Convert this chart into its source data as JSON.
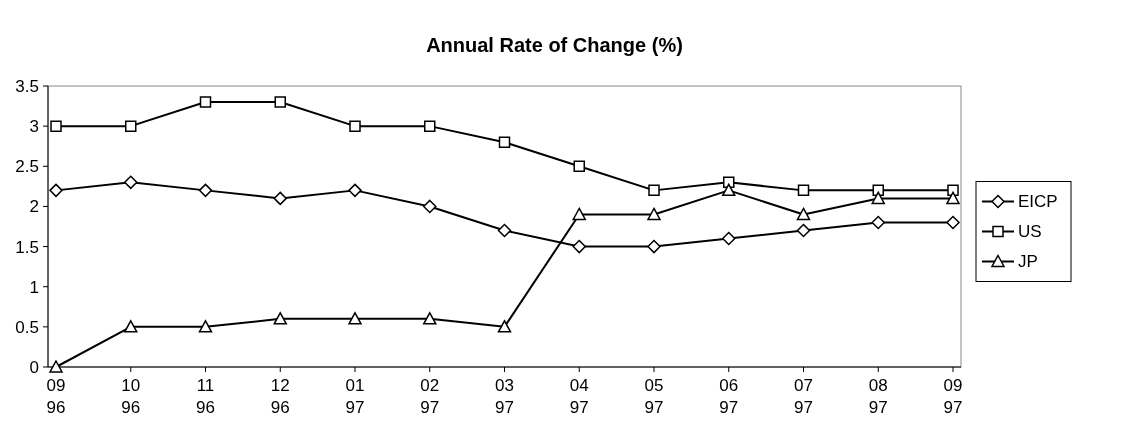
{
  "chart_data": {
    "type": "line",
    "title": "Annual Rate of Change (%)",
    "categories": [
      "09\n96",
      "10\n96",
      "11\n96",
      "12\n96",
      "01\n97",
      "02\n97",
      "03\n97",
      "04\n97",
      "05\n97",
      "06\n97",
      "07\n97",
      "08\n97",
      "09\n97"
    ],
    "series": [
      {
        "name": "EICP",
        "color": "#000000",
        "marker": "diamond",
        "values": [
          2.2,
          2.3,
          2.2,
          2.1,
          2.2,
          2.0,
          1.7,
          1.5,
          1.5,
          1.6,
          1.7,
          1.8,
          1.8
        ]
      },
      {
        "name": "US",
        "color": "#000000",
        "marker": "square",
        "values": [
          3.0,
          3.0,
          3.3,
          3.3,
          3.0,
          3.0,
          2.8,
          2.5,
          2.2,
          2.3,
          2.2,
          2.2,
          2.2
        ]
      },
      {
        "name": "JP",
        "color": "#000000",
        "marker": "triangle",
        "values": [
          0,
          0.5,
          0.5,
          0.6,
          0.6,
          0.6,
          0.5,
          1.9,
          1.9,
          2.2,
          1.9,
          2.1,
          2.1
        ]
      }
    ],
    "ylim": [
      0,
      3.5
    ],
    "yticks": [
      0,
      0.5,
      1,
      1.5,
      2,
      2.5,
      3,
      3.5
    ],
    "grid": false,
    "legend": "right",
    "line_style": "solid"
  }
}
